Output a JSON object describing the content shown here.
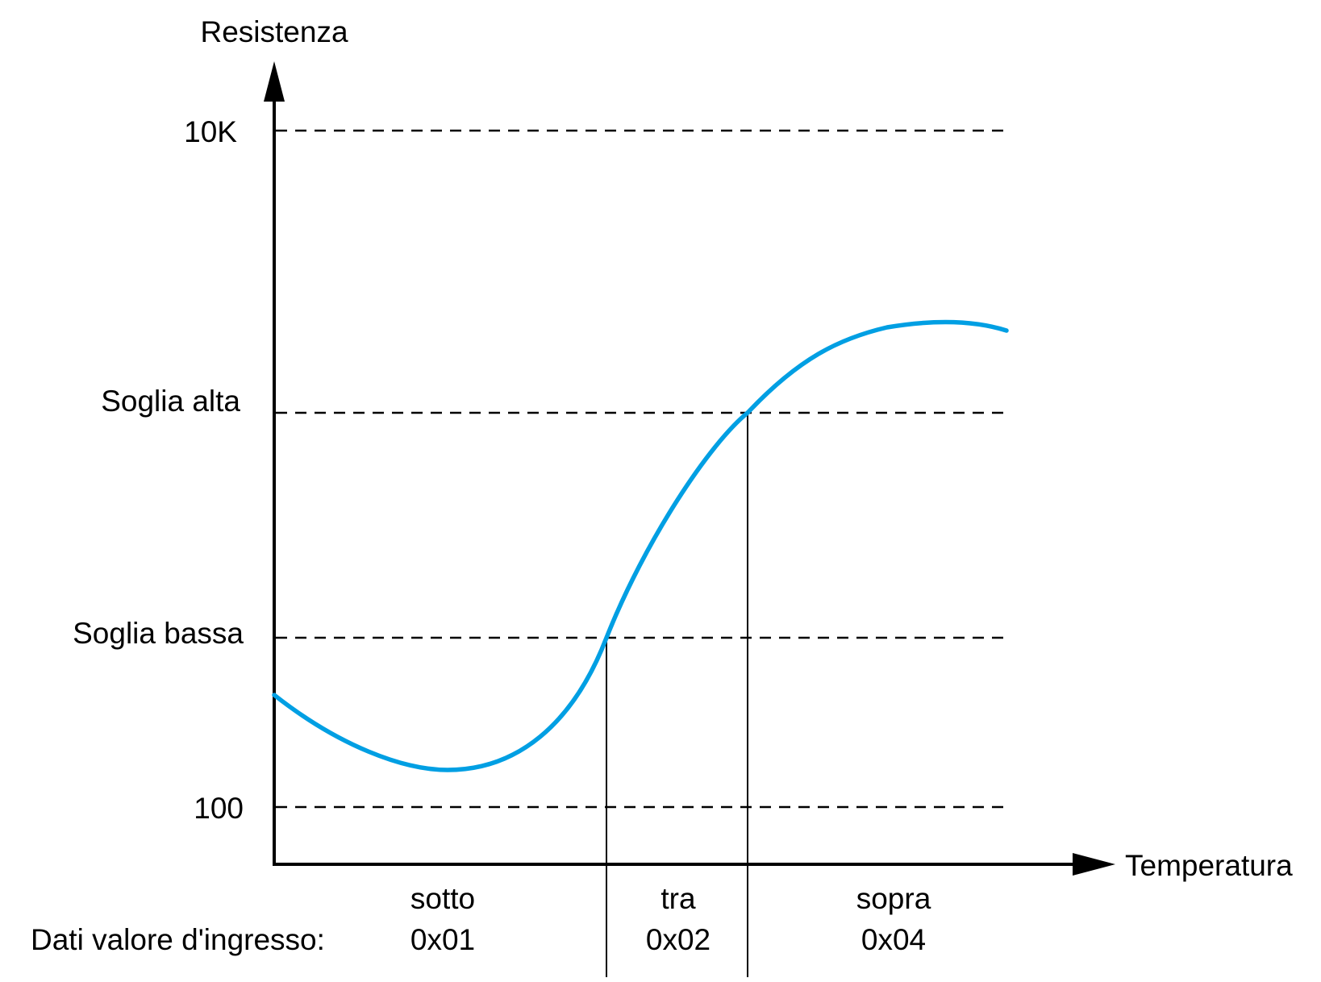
{
  "axes": {
    "y_label": "Resistenza",
    "x_label": "Temperatura"
  },
  "levels": [
    {
      "label": "10K"
    },
    {
      "label": "Soglia alta"
    },
    {
      "label": "Soglia bassa"
    },
    {
      "label": "100"
    }
  ],
  "zones": [
    {
      "name": "sotto",
      "code": "0x01"
    },
    {
      "name": "tra",
      "code": "0x02"
    },
    {
      "name": "sopra",
      "code": "0x04"
    }
  ],
  "row_label": "Dati valore d'ingresso:",
  "colors": {
    "curve": "#009fe3",
    "lines": "#000000"
  }
}
